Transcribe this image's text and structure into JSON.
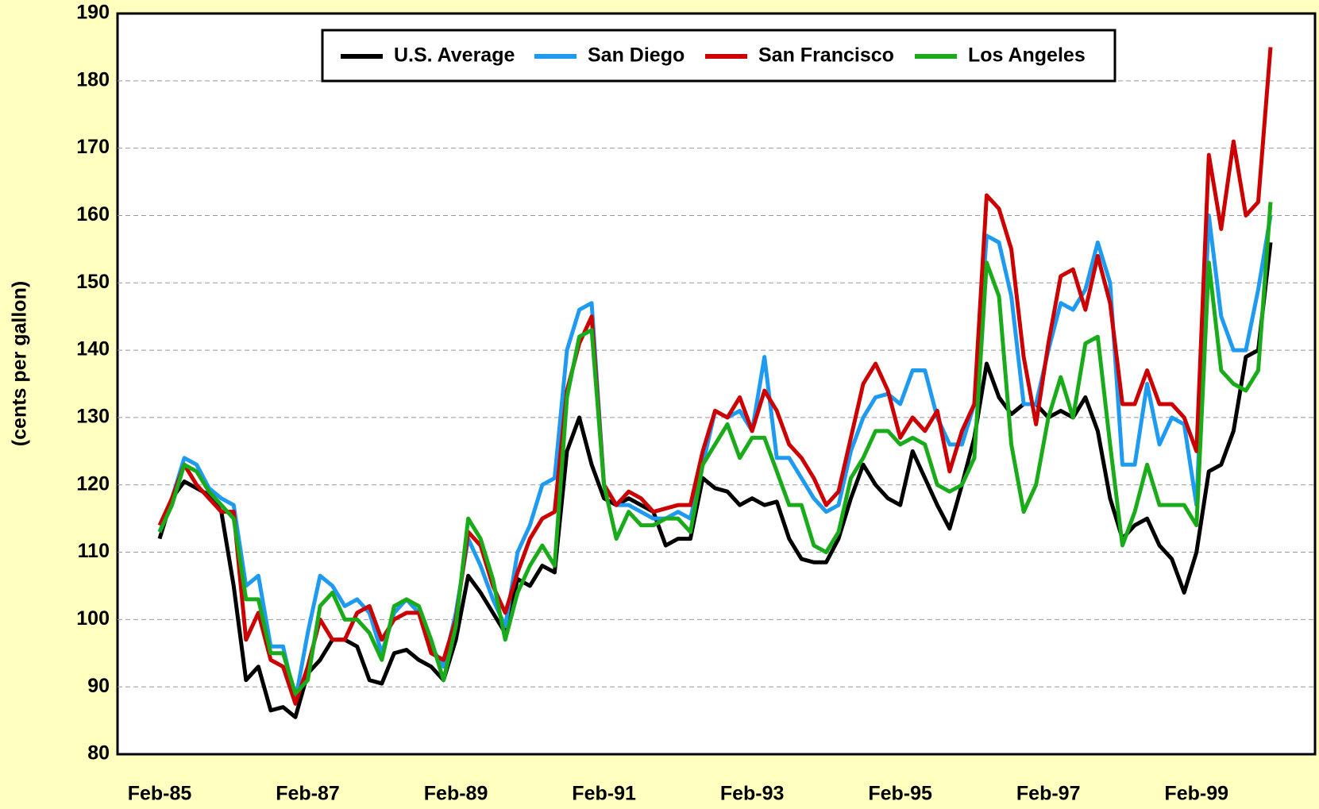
{
  "chart_data": {
    "type": "line",
    "y_label": "(cents per gallon)",
    "categories": [
      "Feb-85",
      null,
      null,
      null,
      null,
      null,
      null,
      null,
      null,
      null,
      null,
      null,
      "Feb-87",
      null,
      null,
      null,
      null,
      null,
      null,
      null,
      null,
      null,
      null,
      null,
      "Feb-89",
      null,
      null,
      null,
      null,
      null,
      null,
      null,
      null,
      null,
      null,
      null,
      "Feb-91",
      null,
      null,
      null,
      null,
      null,
      null,
      null,
      null,
      null,
      null,
      null,
      "Feb-93",
      null,
      null,
      null,
      null,
      null,
      null,
      null,
      null,
      null,
      null,
      null,
      "Feb-95",
      null,
      null,
      null,
      null,
      null,
      null,
      null,
      null,
      null,
      null,
      null,
      "Feb-97",
      null,
      null,
      null,
      null,
      null,
      null,
      null,
      null,
      null,
      null,
      null,
      "Feb-99",
      null,
      null,
      null,
      null,
      null,
      null
    ],
    "series": [
      {
        "name": "U.S. Average",
        "color": "#000000",
        "values": [
          112,
          118,
          120.5,
          119.5,
          118.5,
          116,
          105,
          91,
          93,
          86.5,
          87,
          85.5,
          92,
          94,
          97,
          97,
          96,
          91,
          90.5,
          95,
          95.5,
          94,
          93,
          91,
          97,
          106.5,
          104,
          101,
          98,
          106,
          105,
          108,
          107,
          125,
          130,
          123,
          118,
          117,
          118,
          117,
          116,
          111,
          112,
          112,
          121,
          119.5,
          119,
          117,
          118,
          117,
          117.5,
          112,
          109,
          108.5,
          108.5,
          112,
          118,
          123,
          120,
          118,
          117,
          125,
          121,
          117,
          113.5,
          120,
          127,
          138,
          133,
          130.5,
          132,
          132,
          130,
          131,
          130,
          133,
          128,
          118,
          112,
          114,
          115,
          111,
          109,
          104,
          110,
          122,
          123,
          128,
          139,
          140,
          156
        ]
      },
      {
        "name": "San Diego",
        "color": "#1e9af0",
        "values": [
          113,
          118,
          124,
          123,
          119.5,
          118,
          117,
          105,
          106.5,
          96,
          96,
          88,
          98,
          106.5,
          105,
          102,
          103,
          101,
          95,
          101,
          103,
          101,
          96,
          93,
          101,
          112,
          108,
          103,
          99,
          110,
          114,
          120,
          121,
          140,
          146,
          147,
          120,
          117,
          117,
          116,
          115,
          115,
          116,
          115,
          123,
          131,
          130,
          131,
          128,
          139,
          124,
          124,
          121,
          118,
          116,
          117,
          125,
          130,
          133,
          133.5,
          132,
          137,
          137,
          130,
          126,
          126,
          132,
          157,
          156,
          148,
          132,
          132,
          140,
          147,
          146,
          149,
          156,
          150,
          123,
          123,
          135,
          126,
          130,
          129,
          117,
          160,
          145,
          140,
          140,
          149,
          160
        ]
      },
      {
        "name": "San Francisco",
        "color": "#cc0000",
        "values": [
          114,
          118,
          123,
          120,
          118,
          116,
          116,
          97,
          101,
          94,
          93,
          87.5,
          93,
          100,
          97,
          97,
          101,
          102,
          97,
          100,
          101,
          101,
          95,
          94,
          100,
          113,
          111,
          105,
          101,
          107,
          112,
          115,
          116,
          134,
          141,
          145,
          120,
          117,
          119,
          118,
          116,
          116.5,
          117,
          117,
          125,
          131,
          130,
          133,
          128,
          134,
          131,
          126,
          124,
          121,
          117,
          119,
          127,
          135,
          138,
          134,
          127,
          130,
          128,
          131,
          122,
          128,
          132,
          163,
          161,
          155,
          139,
          129,
          141,
          151,
          152,
          146,
          154,
          147,
          132,
          132,
          137,
          132,
          132,
          130,
          125,
          169,
          158,
          171,
          160,
          162,
          185
        ]
      },
      {
        "name": "Los Angeles",
        "color": "#1aab1a",
        "values": [
          113,
          117,
          123,
          122,
          119,
          117,
          115,
          103,
          103,
          95,
          95,
          89,
          91,
          102,
          104,
          100,
          100,
          98,
          94,
          102,
          103,
          102,
          97,
          91,
          99,
          115,
          112,
          106,
          97,
          104,
          108,
          111,
          108,
          133,
          142,
          143,
          120,
          112,
          116,
          114,
          114,
          115,
          115,
          113,
          123,
          126,
          129,
          124,
          127,
          127,
          122,
          117,
          117,
          111,
          110,
          113,
          121,
          124,
          128,
          128,
          126,
          127,
          126,
          120,
          119,
          120,
          124,
          153,
          148,
          126,
          116,
          120,
          130,
          136,
          130,
          141,
          142,
          126,
          111,
          116,
          123,
          117,
          117,
          117,
          114,
          153,
          137,
          135,
          134,
          137,
          162
        ]
      }
    ],
    "ylim": [
      80,
      190
    ],
    "yticks": [
      80,
      90,
      100,
      110,
      120,
      130,
      140,
      150,
      160,
      170,
      180,
      190
    ],
    "grid": true,
    "legend": "top"
  }
}
